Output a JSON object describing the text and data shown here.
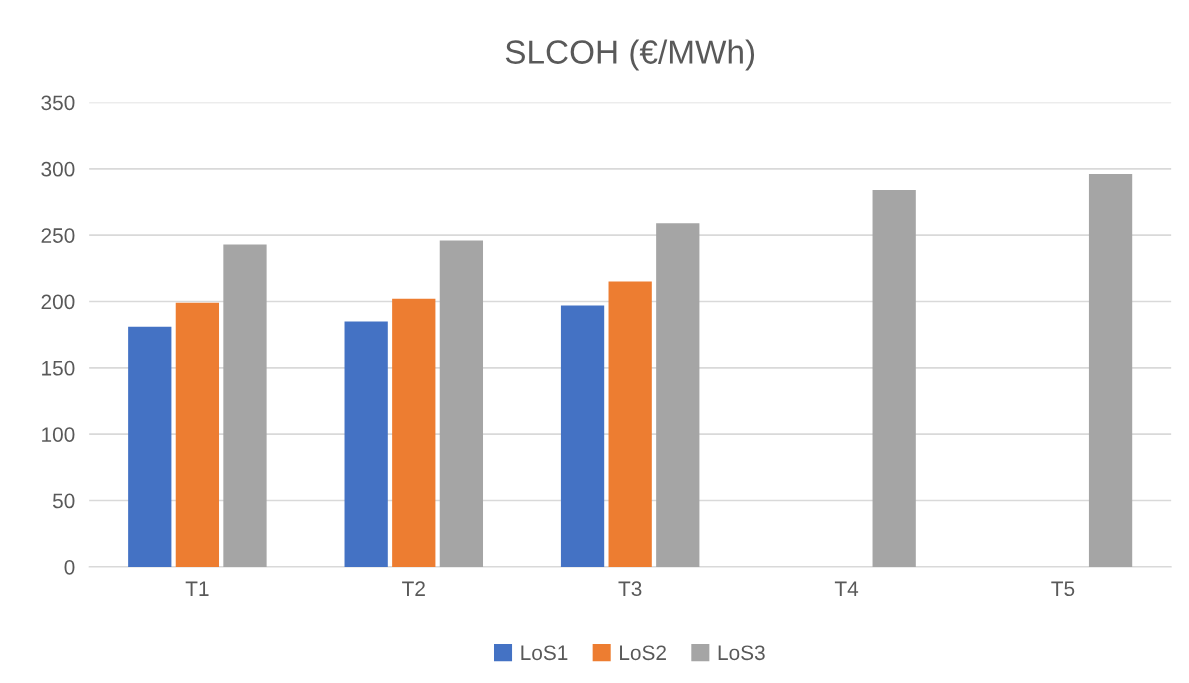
{
  "chart_data": {
    "type": "bar",
    "title": "SLCOH (€/MWh)",
    "categories": [
      "T1",
      "T2",
      "T3",
      "T4",
      "T5"
    ],
    "series": [
      {
        "name": "LoS1",
        "color": "#4472c4",
        "values": [
          181,
          185,
          197,
          null,
          null
        ]
      },
      {
        "name": "LoS2",
        "color": "#ed7d31",
        "values": [
          199,
          202,
          215,
          null,
          null
        ]
      },
      {
        "name": "LoS3",
        "color": "#a5a5a5",
        "values": [
          243,
          246,
          259,
          284,
          296
        ]
      }
    ],
    "ylim": [
      0,
      350
    ],
    "yticks": [
      0,
      50,
      100,
      150,
      200,
      250,
      300,
      350
    ],
    "grid": "y",
    "legend": "bottom"
  }
}
